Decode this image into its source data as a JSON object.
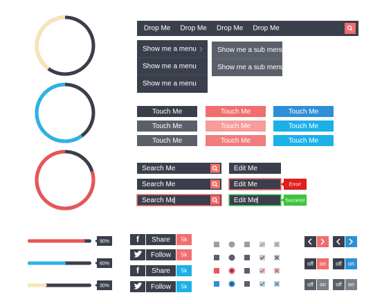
{
  "menu": {
    "items": [
      "Drop Me",
      "Drop Me",
      "Drop Me",
      "Drop Me"
    ],
    "dropdown": [
      "Show me a menu",
      "Show me a menu",
      "Show me a menu"
    ],
    "submenu": [
      "Show me a sub menu",
      "Show me a sub menu"
    ]
  },
  "percent_scale": [
    0,
    100
  ],
  "progress_rings": [
    {
      "value": 40,
      "unit": "%"
    },
    {
      "value": 60,
      "unit": "%"
    },
    {
      "value": 80,
      "unit": "%"
    }
  ],
  "buttons": [
    [
      "Touch Me",
      "Touch Me",
      "Touch Me"
    ],
    [
      "Touch Me",
      "Touch Me",
      "Touch Me"
    ],
    [
      "Touch Me",
      "Touch Me",
      "Touch Me"
    ]
  ],
  "search_inputs": [
    "Search Me",
    "Search Me",
    "Search Me"
  ],
  "edit_inputs": [
    "Edit Me",
    "Edit Me",
    "Edit Me"
  ],
  "tooltips": [
    "Error!",
    "Success!"
  ],
  "sliders": [
    {
      "value": 90,
      "label": "90%"
    },
    {
      "value": 60,
      "label": "60%"
    },
    {
      "value": 30,
      "label": "30%"
    }
  ],
  "social": [
    {
      "icon": "f",
      "action": "Share",
      "count": "5k"
    },
    {
      "action": "Follow",
      "count": "5k"
    },
    {
      "icon": "f",
      "action": "Share",
      "count": "5k"
    },
    {
      "action": "Follow",
      "count": "5k"
    }
  ],
  "toggles": [
    [
      "off",
      "on"
    ],
    [
      "off",
      "on"
    ],
    [
      "off",
      "on"
    ],
    [
      "off",
      "on"
    ]
  ]
}
